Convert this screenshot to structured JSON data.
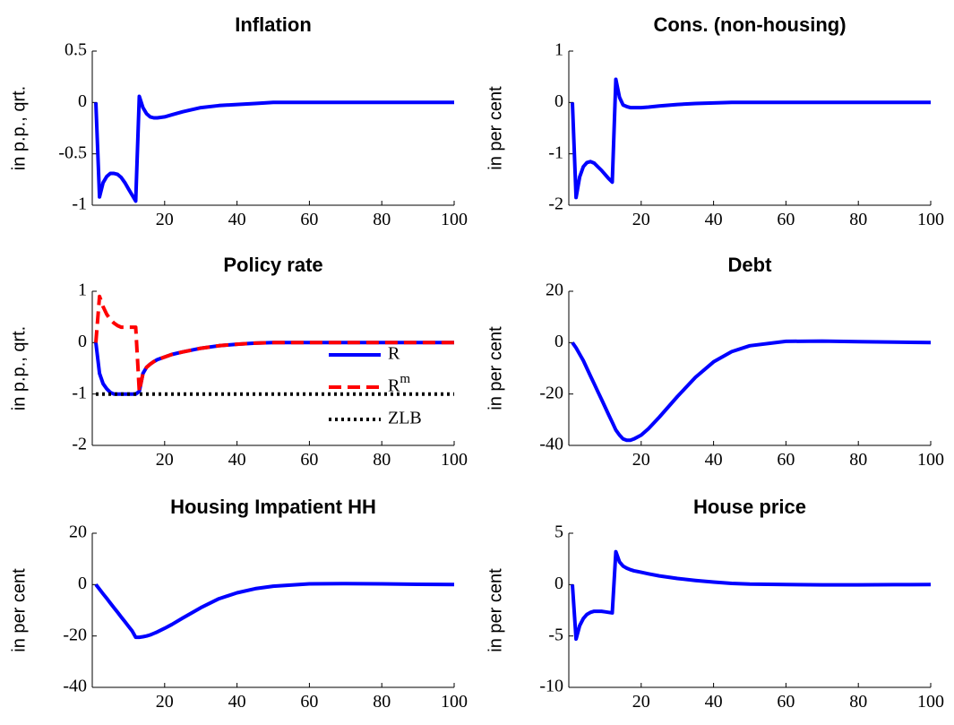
{
  "chart_data": [
    {
      "type": "line",
      "title": "Inflation",
      "ylabel": "in p.p., qrt.",
      "xlim": [
        0,
        100
      ],
      "ylim": [
        -1,
        0.5
      ],
      "xticks": [
        20,
        40,
        60,
        80,
        100
      ],
      "yticks": [
        -1,
        -0.5,
        0,
        0.5
      ],
      "x": [
        1,
        2,
        3,
        4,
        5,
        6,
        7,
        8,
        9,
        10,
        11,
        12,
        13,
        14,
        15,
        16,
        17,
        18,
        20,
        22,
        25,
        30,
        35,
        40,
        45,
        50,
        60,
        70,
        80,
        90,
        100
      ],
      "series": [
        {
          "color": "#0000ff",
          "dash": "solid",
          "values": [
            0,
            -0.92,
            -0.78,
            -0.72,
            -0.69,
            -0.69,
            -0.7,
            -0.73,
            -0.78,
            -0.84,
            -0.9,
            -0.96,
            0.06,
            -0.05,
            -0.11,
            -0.14,
            -0.15,
            -0.15,
            -0.14,
            -0.12,
            -0.09,
            -0.05,
            -0.03,
            -0.02,
            -0.01,
            0,
            0,
            0,
            0,
            0,
            0
          ]
        }
      ]
    },
    {
      "type": "line",
      "title": "Cons. (non-housing)",
      "ylabel": "in per cent",
      "xlim": [
        0,
        100
      ],
      "ylim": [
        -2,
        1
      ],
      "xticks": [
        20,
        40,
        60,
        80,
        100
      ],
      "yticks": [
        -2,
        -1,
        0,
        1
      ],
      "x": [
        1,
        2,
        3,
        4,
        5,
        6,
        7,
        8,
        9,
        10,
        11,
        12,
        13,
        14,
        15,
        16,
        17,
        18,
        20,
        22,
        25,
        30,
        35,
        40,
        45,
        50,
        60,
        70,
        80,
        90,
        100
      ],
      "series": [
        {
          "color": "#0000ff",
          "dash": "solid",
          "values": [
            0,
            -1.85,
            -1.45,
            -1.25,
            -1.17,
            -1.15,
            -1.18,
            -1.25,
            -1.32,
            -1.4,
            -1.48,
            -1.55,
            0.45,
            0.1,
            -0.05,
            -0.08,
            -0.1,
            -0.1,
            -0.1,
            -0.09,
            -0.07,
            -0.04,
            -0.02,
            -0.01,
            0,
            0,
            0,
            0,
            0,
            0,
            0
          ]
        }
      ]
    },
    {
      "type": "line",
      "title": "Policy rate",
      "ylabel": "in p.p., qrt.",
      "xlim": [
        0,
        100
      ],
      "ylim": [
        -2,
        1
      ],
      "xticks": [
        20,
        40,
        60,
        80,
        100
      ],
      "yticks": [
        -2,
        -1,
        0,
        1
      ],
      "legend": "right",
      "x": [
        1,
        2,
        3,
        4,
        5,
        6,
        7,
        8,
        9,
        10,
        11,
        12,
        13,
        14,
        15,
        16,
        17,
        18,
        20,
        22,
        25,
        30,
        35,
        40,
        45,
        50,
        60,
        70,
        80,
        90,
        100
      ],
      "series": [
        {
          "name": "R",
          "color": "#0000ff",
          "dash": "solid",
          "values": [
            0,
            -0.6,
            -0.8,
            -0.9,
            -0.97,
            -1,
            -1,
            -1,
            -1,
            -1,
            -1,
            -1,
            -0.95,
            -0.6,
            -0.48,
            -0.42,
            -0.37,
            -0.33,
            -0.28,
            -0.23,
            -0.18,
            -0.11,
            -0.06,
            -0.03,
            -0.01,
            0,
            0,
            0,
            0,
            0,
            0
          ]
        },
        {
          "name": "Rm",
          "color": "#ff0000",
          "dash": "dashed",
          "values": [
            0,
            0.9,
            0.7,
            0.55,
            0.45,
            0.38,
            0.33,
            0.3,
            0.3,
            0.3,
            0.3,
            0.3,
            -0.95,
            -0.6,
            -0.48,
            -0.42,
            -0.37,
            -0.33,
            -0.28,
            -0.23,
            -0.18,
            -0.11,
            -0.06,
            -0.03,
            -0.01,
            0,
            0,
            0,
            0,
            0,
            0
          ]
        },
        {
          "name": "ZLB",
          "color": "#000000",
          "dash": "dotted",
          "values": [
            -1,
            -1,
            -1,
            -1,
            -1,
            -1,
            -1,
            -1,
            -1,
            -1,
            -1,
            -1,
            -1,
            -1,
            -1,
            -1,
            -1,
            -1,
            -1,
            -1,
            -1,
            -1,
            -1,
            -1,
            -1,
            -1,
            -1,
            -1,
            -1,
            -1,
            -1
          ]
        }
      ]
    },
    {
      "type": "line",
      "title": "Debt",
      "ylabel": "in per cent",
      "xlim": [
        0,
        100
      ],
      "ylim": [
        -40,
        20
      ],
      "xticks": [
        20,
        40,
        60,
        80,
        100
      ],
      "yticks": [
        -40,
        -20,
        0,
        20
      ],
      "x": [
        1,
        2,
        3,
        4,
        5,
        6,
        7,
        8,
        9,
        10,
        11,
        12,
        13,
        14,
        15,
        16,
        17,
        18,
        20,
        22,
        25,
        30,
        35,
        40,
        45,
        50,
        60,
        70,
        80,
        90,
        100
      ],
      "series": [
        {
          "color": "#0000ff",
          "dash": "solid",
          "values": [
            0,
            -2,
            -4.5,
            -7,
            -10,
            -13,
            -16,
            -19,
            -22,
            -25,
            -28,
            -31,
            -34,
            -36,
            -37.5,
            -38,
            -38,
            -37.5,
            -36,
            -33.5,
            -29,
            -21,
            -13.5,
            -7.5,
            -3.5,
            -1.2,
            0.5,
            0.6,
            0.4,
            0.2,
            0
          ]
        }
      ]
    },
    {
      "type": "line",
      "title": "Housing Impatient HH",
      "ylabel": "in per cent",
      "xlim": [
        0,
        100
      ],
      "ylim": [
        -40,
        20
      ],
      "xticks": [
        20,
        40,
        60,
        80,
        100
      ],
      "yticks": [
        -40,
        -20,
        0,
        20
      ],
      "x": [
        1,
        2,
        3,
        4,
        5,
        6,
        7,
        8,
        9,
        10,
        11,
        12,
        13,
        14,
        15,
        16,
        17,
        18,
        20,
        22,
        25,
        30,
        35,
        40,
        45,
        50,
        60,
        70,
        80,
        90,
        100
      ],
      "series": [
        {
          "color": "#0000ff",
          "dash": "solid",
          "values": [
            0,
            -1.8,
            -3.6,
            -5.4,
            -7.2,
            -9,
            -10.8,
            -12.6,
            -14.4,
            -16.2,
            -18,
            -20.5,
            -20.5,
            -20.3,
            -20,
            -19.6,
            -19,
            -18.4,
            -17,
            -15.5,
            -13,
            -9,
            -5.5,
            -3.2,
            -1.6,
            -0.6,
            0.3,
            0.4,
            0.3,
            0.1,
            0
          ]
        }
      ]
    },
    {
      "type": "line",
      "title": "House price",
      "ylabel": "in per cent",
      "xlim": [
        0,
        100
      ],
      "ylim": [
        -10,
        5
      ],
      "xticks": [
        20,
        40,
        60,
        80,
        100
      ],
      "yticks": [
        -10,
        -5,
        0,
        5
      ],
      "x": [
        1,
        2,
        3,
        4,
        5,
        6,
        7,
        8,
        9,
        10,
        11,
        12,
        13,
        14,
        15,
        16,
        17,
        18,
        20,
        22,
        25,
        30,
        35,
        40,
        45,
        50,
        60,
        70,
        80,
        90,
        100
      ],
      "series": [
        {
          "color": "#0000ff",
          "dash": "solid",
          "values": [
            0,
            -5.3,
            -4,
            -3.3,
            -2.9,
            -2.7,
            -2.6,
            -2.6,
            -2.6,
            -2.65,
            -2.7,
            -2.75,
            3.2,
            2.2,
            1.8,
            1.6,
            1.45,
            1.35,
            1.2,
            1.05,
            0.85,
            0.6,
            0.4,
            0.25,
            0.12,
            0.05,
            0,
            -0.02,
            -0.02,
            -0.01,
            0
          ]
        }
      ]
    }
  ]
}
